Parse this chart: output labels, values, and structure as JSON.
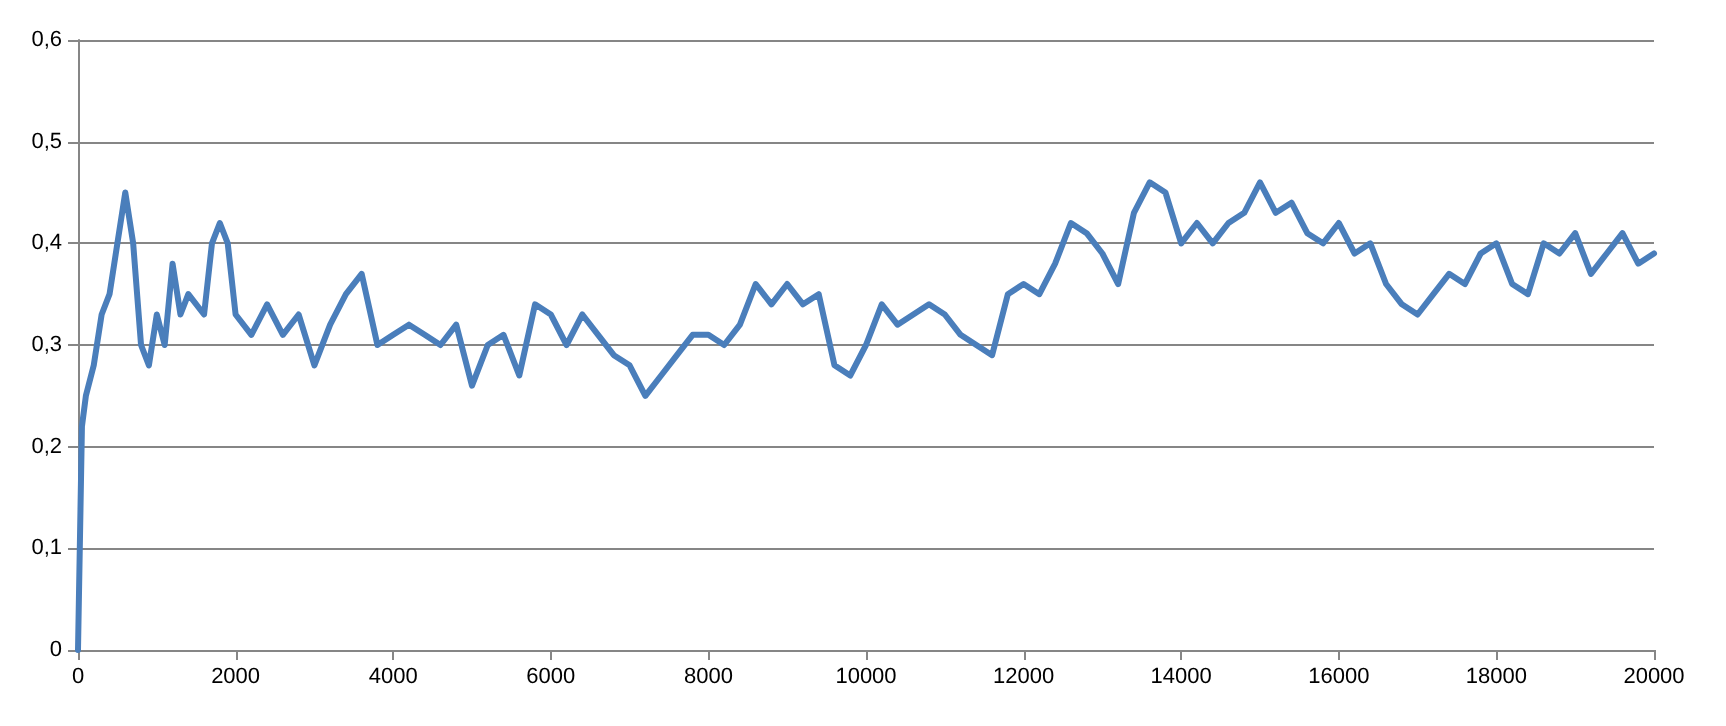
{
  "chart_data": {
    "type": "line",
    "grid": "y",
    "marker": "none",
    "line_style": "solid",
    "xlim": [
      0,
      20000
    ],
    "xticks": [
      0,
      2000,
      4000,
      6000,
      8000,
      10000,
      12000,
      14000,
      16000,
      18000,
      20000
    ],
    "ylim": [
      0,
      0.6
    ],
    "yticks": [
      0,
      {
        "value": 0.1,
        "label": "0,1"
      },
      {
        "value": 0.2,
        "label": "0,2"
      },
      {
        "value": 0.3,
        "label": "0,3"
      },
      {
        "value": 0.4,
        "label": "0,4"
      },
      {
        "value": 0.5,
        "label": "0,5"
      },
      {
        "value": 0.6,
        "label": "0,6"
      }
    ],
    "x": [
      0,
      50,
      100,
      200,
      300,
      400,
      500,
      600,
      700,
      800,
      900,
      1000,
      1100,
      1200,
      1300,
      1400,
      1600,
      1700,
      1800,
      1900,
      2000,
      2200,
      2400,
      2600,
      2800,
      3000,
      3200,
      3400,
      3600,
      3800,
      4000,
      4200,
      4400,
      4600,
      4800,
      5000,
      5200,
      5400,
      5600,
      5800,
      6000,
      6200,
      6400,
      6600,
      6800,
      7000,
      7200,
      7400,
      7600,
      7800,
      8000,
      8200,
      8400,
      8600,
      8800,
      9000,
      9200,
      9400,
      9600,
      9800,
      10000,
      10200,
      10400,
      10600,
      10800,
      11000,
      11200,
      11400,
      11600,
      11800,
      12000,
      12200,
      12400,
      12600,
      12800,
      13000,
      13200,
      13400,
      13600,
      13800,
      14000,
      14200,
      14400,
      14600,
      14800,
      15000,
      15200,
      15400,
      15600,
      15800,
      16000,
      16200,
      16400,
      16600,
      16800,
      17000,
      17200,
      17400,
      17600,
      17800,
      18000,
      18200,
      18400,
      18600,
      18800,
      19000,
      19200,
      19400,
      19600,
      19800,
      20000
    ],
    "series": [
      {
        "color": "#4a7ebb",
        "values": [
          0,
          0.22,
          0.25,
          0.28,
          0.33,
          0.35,
          0.4,
          0.45,
          0.4,
          0.3,
          0.28,
          0.33,
          0.3,
          0.38,
          0.33,
          0.35,
          0.33,
          0.4,
          0.42,
          0.4,
          0.33,
          0.31,
          0.34,
          0.31,
          0.33,
          0.28,
          0.32,
          0.35,
          0.37,
          0.3,
          0.31,
          0.32,
          0.31,
          0.3,
          0.32,
          0.26,
          0.3,
          0.31,
          0.27,
          0.34,
          0.33,
          0.3,
          0.33,
          0.31,
          0.29,
          0.28,
          0.25,
          0.27,
          0.29,
          0.31,
          0.31,
          0.3,
          0.32,
          0.36,
          0.34,
          0.36,
          0.34,
          0.35,
          0.28,
          0.27,
          0.3,
          0.34,
          0.32,
          0.33,
          0.34,
          0.33,
          0.31,
          0.3,
          0.29,
          0.35,
          0.36,
          0.35,
          0.38,
          0.42,
          0.41,
          0.39,
          0.36,
          0.43,
          0.46,
          0.45,
          0.4,
          0.42,
          0.4,
          0.42,
          0.43,
          0.46,
          0.43,
          0.44,
          0.41,
          0.4,
          0.42,
          0.39,
          0.4,
          0.36,
          0.34,
          0.33,
          0.35,
          0.37,
          0.36,
          0.39,
          0.4,
          0.36,
          0.35,
          0.4,
          0.39,
          0.41,
          0.37,
          0.39,
          0.41,
          0.38,
          0.39
        ]
      }
    ]
  }
}
